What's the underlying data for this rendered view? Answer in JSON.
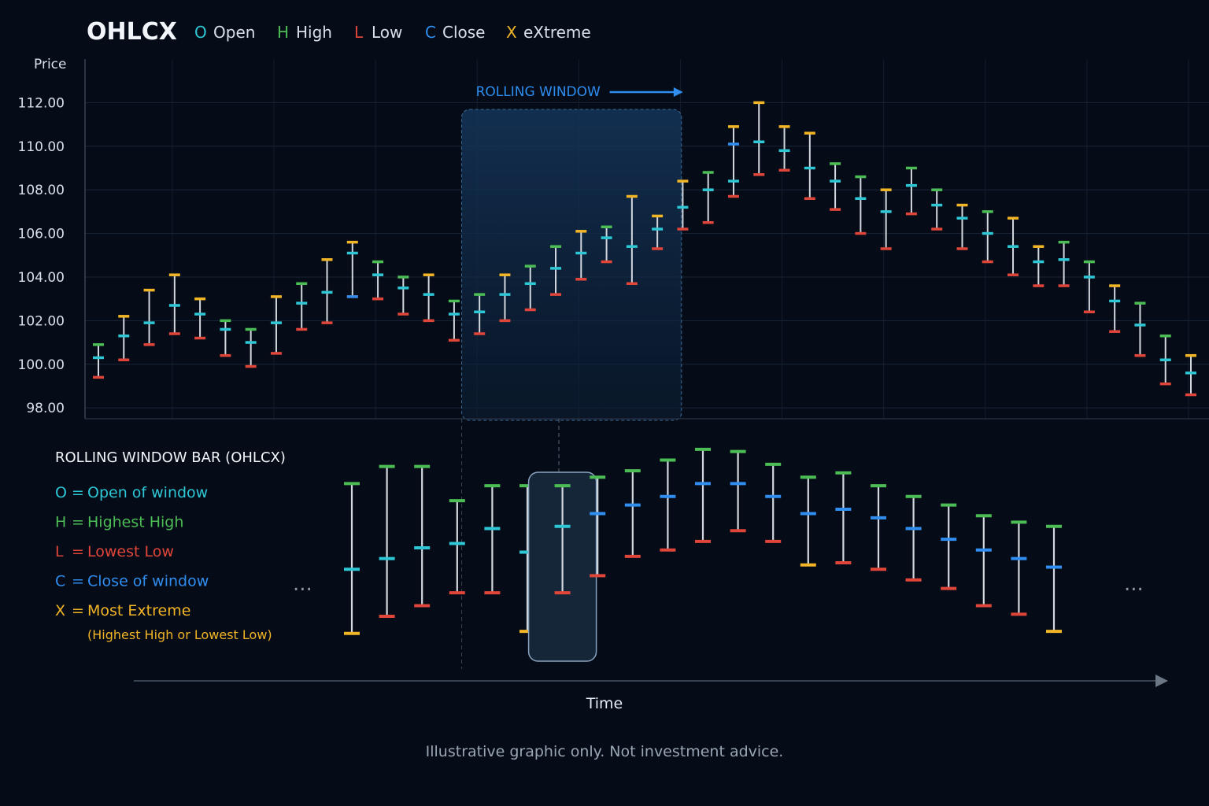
{
  "colors": {
    "open": "#2ec7d6",
    "high": "#4cbc55",
    "low": "#e0453a",
    "close": "#2f8ef0",
    "extreme": "#f2b526",
    "wick": "#d3d7de",
    "background": "#050b17"
  },
  "legend": {
    "title": "OHLCX",
    "items": [
      {
        "key": "O",
        "label": "Open",
        "color": "#2ec7d6"
      },
      {
        "key": "H",
        "label": "High",
        "color": "#4cbc55"
      },
      {
        "key": "L",
        "label": "Low",
        "color": "#e0453a"
      },
      {
        "key": "C",
        "label": "Close",
        "color": "#2f8ef0"
      },
      {
        "key": "X",
        "label": "eXtreme",
        "color": "#f2b526"
      }
    ]
  },
  "chart_data": [
    {
      "type": "ohlc",
      "ylabel": "Price",
      "ylim": [
        97.5,
        114.0
      ],
      "yticks": [
        "112.00",
        "110.00",
        "108.00",
        "106.00",
        "104.00",
        "102.00",
        "100.00",
        "98.00"
      ],
      "grid": true,
      "window_label": "ROLLING WINDOW",
      "window_bars": [
        15,
        22
      ],
      "bars": [
        {
          "o": 100.3,
          "h": 100.9,
          "l": 99.4,
          "c": 100.3
        },
        {
          "o": 101.3,
          "h": 102.2,
          "l": 100.2,
          "c": 101.3
        },
        {
          "o": 101.9,
          "h": 103.4,
          "l": 100.9,
          "c": 101.9
        },
        {
          "o": 102.7,
          "h": 104.1,
          "l": 101.4,
          "c": 102.7
        },
        {
          "o": 102.3,
          "h": 103.0,
          "l": 101.2,
          "c": 102.3
        },
        {
          "o": 101.6,
          "h": 102.0,
          "l": 100.4,
          "c": 101.6
        },
        {
          "o": 101.0,
          "h": 101.6,
          "l": 99.9,
          "c": 101.0
        },
        {
          "o": 101.9,
          "h": 103.1,
          "l": 100.5,
          "c": 101.9
        },
        {
          "o": 102.8,
          "h": 103.7,
          "l": 101.6,
          "c": 102.8
        },
        {
          "o": 103.3,
          "h": 104.8,
          "l": 101.9,
          "c": 103.3
        },
        {
          "o": 105.1,
          "h": 105.6,
          "l": 103.1,
          "c": 103.1
        },
        {
          "o": 104.1,
          "h": 104.7,
          "l": 103.0,
          "c": 104.1
        },
        {
          "o": 103.5,
          "h": 104.0,
          "l": 102.3,
          "c": 103.5
        },
        {
          "o": 103.2,
          "h": 104.1,
          "l": 102.0,
          "c": 103.2
        },
        {
          "o": 102.3,
          "h": 102.9,
          "l": 101.1,
          "c": 102.3
        },
        {
          "o": 102.4,
          "h": 103.2,
          "l": 101.4,
          "c": 102.4
        },
        {
          "o": 103.2,
          "h": 104.1,
          "l": 102.0,
          "c": 103.2
        },
        {
          "o": 103.7,
          "h": 104.5,
          "l": 102.5,
          "c": 103.7
        },
        {
          "o": 104.4,
          "h": 105.4,
          "l": 103.2,
          "c": 104.4
        },
        {
          "o": 105.1,
          "h": 106.1,
          "l": 103.9,
          "c": 105.1
        },
        {
          "o": 105.8,
          "h": 106.3,
          "l": 104.7,
          "c": 105.8
        },
        {
          "o": 105.4,
          "h": 107.7,
          "l": 103.7,
          "c": 105.4
        },
        {
          "o": 106.2,
          "h": 106.8,
          "l": 105.3,
          "c": 106.2
        },
        {
          "o": 107.2,
          "h": 108.4,
          "l": 106.2,
          "c": 107.2
        },
        {
          "o": 108.0,
          "h": 108.8,
          "l": 106.5,
          "c": 108.0
        },
        {
          "o": 108.4,
          "h": 110.9,
          "l": 107.7,
          "c": 110.1
        },
        {
          "o": 110.2,
          "h": 112.0,
          "l": 108.7,
          "c": 110.2
        },
        {
          "o": 109.8,
          "h": 110.9,
          "l": 108.9,
          "c": 109.8
        },
        {
          "o": 109.0,
          "h": 110.6,
          "l": 107.6,
          "c": 109.0
        },
        {
          "o": 108.4,
          "h": 109.2,
          "l": 107.1,
          "c": 108.4
        },
        {
          "o": 107.6,
          "h": 108.6,
          "l": 106.0,
          "c": 107.6
        },
        {
          "o": 107.0,
          "h": 108.0,
          "l": 105.3,
          "c": 107.0
        },
        {
          "o": 108.2,
          "h": 109.0,
          "l": 106.9,
          "c": 108.2
        },
        {
          "o": 107.3,
          "h": 108.0,
          "l": 106.2,
          "c": 107.3
        },
        {
          "o": 106.7,
          "h": 107.3,
          "l": 105.3,
          "c": 106.7
        },
        {
          "o": 106.0,
          "h": 107.0,
          "l": 104.7,
          "c": 106.0
        },
        {
          "o": 105.4,
          "h": 106.7,
          "l": 104.1,
          "c": 105.4
        },
        {
          "o": 104.7,
          "h": 105.4,
          "l": 103.6,
          "c": 104.7
        },
        {
          "o": 104.8,
          "h": 105.6,
          "l": 103.6,
          "c": 104.8
        },
        {
          "o": 104.0,
          "h": 104.7,
          "l": 102.4,
          "c": 104.0
        },
        {
          "o": 102.9,
          "h": 103.6,
          "l": 101.5,
          "c": 102.9
        },
        {
          "o": 101.8,
          "h": 102.8,
          "l": 100.4,
          "c": 101.8
        },
        {
          "o": 100.2,
          "h": 101.3,
          "l": 99.1,
          "c": 100.2
        },
        {
          "o": 99.6,
          "h": 100.4,
          "l": 98.6,
          "c": 99.6
        }
      ]
    },
    {
      "type": "ohlcx",
      "title": "ROLLING WINDOW BAR (OHLCX)",
      "xlabel": "Time",
      "highlight_index": 6,
      "bars": [
        {
          "h": 0.2,
          "o": 0.6,
          "c": 0.6,
          "l": 0.9,
          "x": "low"
        },
        {
          "h": 0.12,
          "o": 0.55,
          "c": 0.55,
          "l": 0.82,
          "x": "none"
        },
        {
          "h": 0.12,
          "o": 0.5,
          "c": 0.5,
          "l": 0.77,
          "x": "none"
        },
        {
          "h": 0.28,
          "o": 0.48,
          "c": 0.48,
          "l": 0.71,
          "x": "none"
        },
        {
          "h": 0.21,
          "o": 0.41,
          "c": 0.41,
          "l": 0.71,
          "x": "none"
        },
        {
          "h": 0.21,
          "o": 0.52,
          "c": 0.52,
          "l": 0.89,
          "x": "low"
        },
        {
          "h": 0.21,
          "o": 0.4,
          "c": 0.4,
          "l": 0.71,
          "x": "none"
        },
        {
          "h": 0.17,
          "o": 0.34,
          "c": 0.34,
          "l": 0.63,
          "x": "none"
        },
        {
          "h": 0.14,
          "o": 0.3,
          "c": 0.3,
          "l": 0.54,
          "x": "none"
        },
        {
          "h": 0.09,
          "o": 0.26,
          "c": 0.26,
          "l": 0.51,
          "x": "none"
        },
        {
          "h": 0.04,
          "o": 0.2,
          "c": 0.2,
          "l": 0.47,
          "x": "none"
        },
        {
          "h": 0.05,
          "o": 0.2,
          "c": 0.2,
          "l": 0.42,
          "x": "none"
        },
        {
          "h": 0.11,
          "o": 0.26,
          "c": 0.26,
          "l": 0.47,
          "x": "none"
        },
        {
          "h": 0.17,
          "o": 0.34,
          "c": 0.34,
          "l": 0.58,
          "x": "low"
        },
        {
          "h": 0.15,
          "o": 0.32,
          "c": 0.32,
          "l": 0.57,
          "x": "none"
        },
        {
          "h": 0.21,
          "o": 0.36,
          "c": 0.36,
          "l": 0.6,
          "x": "none"
        },
        {
          "h": 0.26,
          "o": 0.41,
          "c": 0.41,
          "l": 0.65,
          "x": "none"
        },
        {
          "h": 0.3,
          "o": 0.46,
          "c": 0.46,
          "l": 0.69,
          "x": "none"
        },
        {
          "h": 0.35,
          "o": 0.51,
          "c": 0.51,
          "l": 0.77,
          "x": "none"
        },
        {
          "h": 0.38,
          "o": 0.55,
          "c": 0.55,
          "l": 0.81,
          "x": "none"
        },
        {
          "h": 0.4,
          "o": 0.59,
          "c": 0.59,
          "l": 0.89,
          "x": "low"
        }
      ]
    }
  ],
  "definitions": {
    "title": "ROLLING WINDOW BAR (OHLCX)",
    "items": [
      {
        "key": "O",
        "text": "Open of window",
        "color": "#2ec7d6"
      },
      {
        "key": "H",
        "text": "Highest High",
        "color": "#4cbc55"
      },
      {
        "key": "L",
        "text": "Lowest Low",
        "color": "#e0453a"
      },
      {
        "key": "C",
        "text": "Close of window",
        "color": "#2f8ef0"
      },
      {
        "key": "X",
        "text": "Most Extreme",
        "color": "#f2b526"
      }
    ],
    "note": "(Highest High or Lowest Low)",
    "equals": "="
  },
  "ellipsis": "...",
  "disclaimer": "Illustrative graphic only. Not investment advice."
}
